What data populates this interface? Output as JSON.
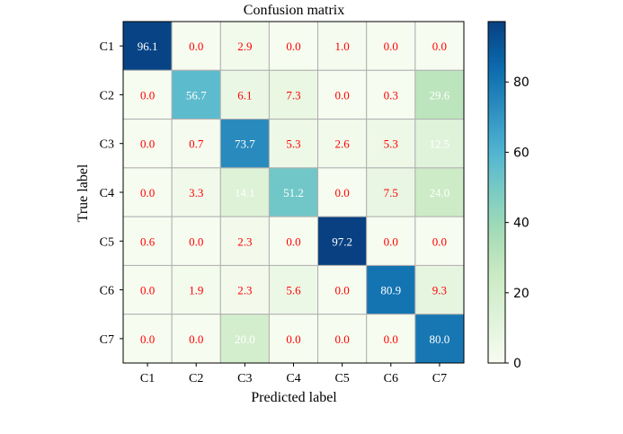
{
  "chart_data": {
    "type": "heatmap",
    "title": "Confusion matrix",
    "xlabel": "Predicted label",
    "ylabel": "True label",
    "x_categories": [
      "C1",
      "C2",
      "C3",
      "C4",
      "C5",
      "C6",
      "C7"
    ],
    "y_categories": [
      "C1",
      "C2",
      "C3",
      "C4",
      "C5",
      "C6",
      "C7"
    ],
    "values": [
      [
        96.1,
        0.0,
        2.9,
        0.0,
        1.0,
        0.0,
        0.0
      ],
      [
        0.0,
        56.7,
        6.1,
        7.3,
        0.0,
        0.3,
        29.6
      ],
      [
        0.0,
        0.7,
        73.7,
        5.3,
        2.6,
        5.3,
        12.5
      ],
      [
        0.0,
        3.3,
        14.1,
        51.2,
        0.0,
        7.5,
        24.0
      ],
      [
        0.6,
        0.0,
        2.3,
        0.0,
        97.2,
        0.0,
        0.0
      ],
      [
        0.0,
        1.9,
        2.3,
        5.6,
        0.0,
        80.9,
        9.3
      ],
      [
        0.0,
        0.0,
        20.0,
        0.0,
        0.0,
        0.0,
        80.0
      ]
    ],
    "value_labels": [
      [
        "96.1",
        "0.0",
        "2.9",
        "0.0",
        "1.0",
        "0.0",
        "0.0"
      ],
      [
        "0.0",
        "56.7",
        "6.1",
        "7.3",
        "0.0",
        "0.3",
        "29.6"
      ],
      [
        "0.0",
        "0.7",
        "73.7",
        "5.3",
        "2.6",
        "5.3",
        "12.5"
      ],
      [
        "0.0",
        "3.3",
        "14.1",
        "51.2",
        "0.0",
        "7.5",
        "24.0"
      ],
      [
        "0.6",
        "0.0",
        "2.3",
        "0.0",
        "97.2",
        "0.0",
        "0.0"
      ],
      [
        "0.0",
        "1.9",
        "2.3",
        "5.6",
        "0.0",
        "80.9",
        "9.3"
      ],
      [
        "0.0",
        "0.0",
        "20.0",
        "0.0",
        "0.0",
        "0.0",
        "80.0"
      ]
    ],
    "colorbar": {
      "colormap": "GnBu",
      "range": [
        0,
        97.2
      ],
      "ticks": [
        0,
        20,
        40,
        60,
        80
      ],
      "tick_labels": [
        "0",
        "20",
        "40",
        "60",
        "80"
      ]
    },
    "colors": {
      "low_value_text": "#ff0000",
      "high_value_text": "#ffffff",
      "cell_border": "#b0b0b0"
    }
  }
}
